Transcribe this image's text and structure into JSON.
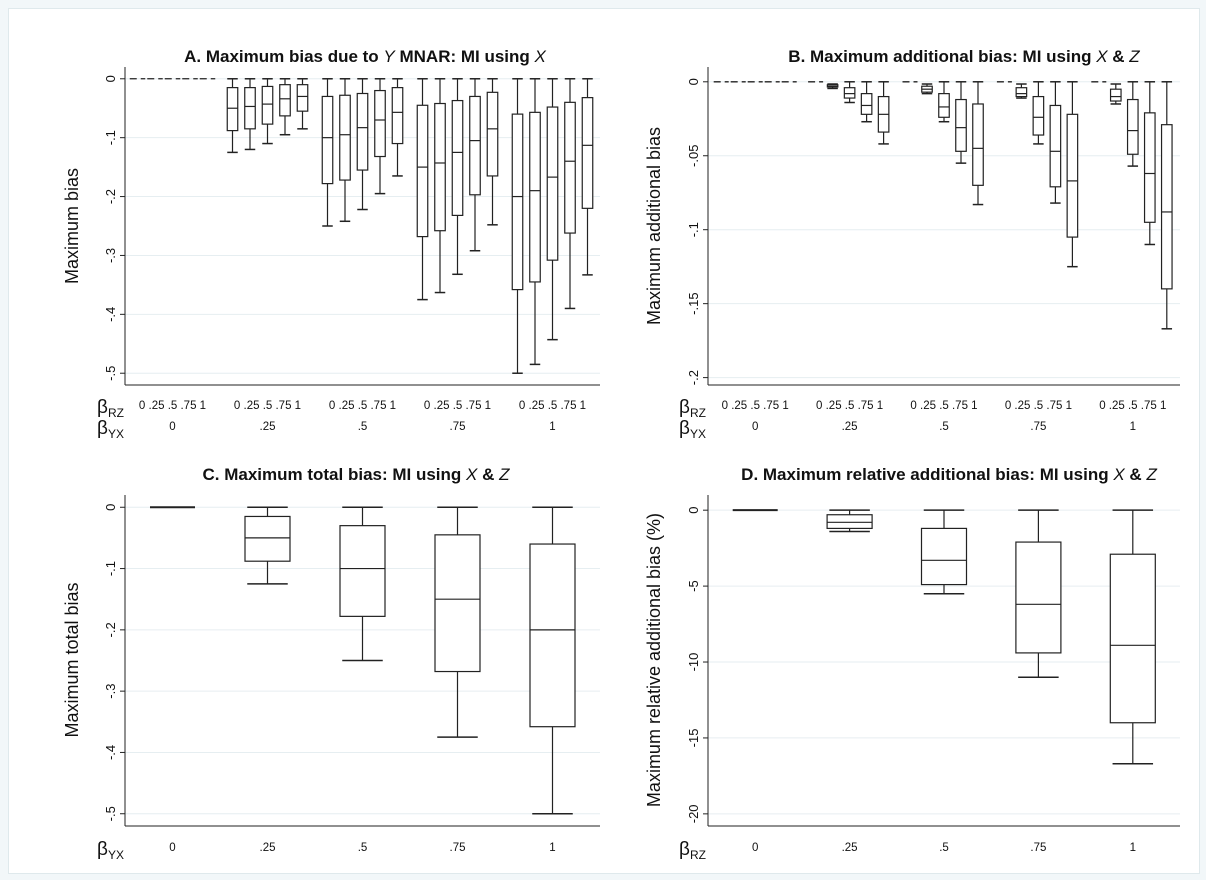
{
  "chart_data": [
    {
      "id": "A",
      "type": "boxplot",
      "title_prefix": "A. Maximum bias due to ",
      "title_parts": [
        "A. Maximum bias due to ",
        "Y",
        " MNAR: MI using ",
        "X"
      ],
      "ylabel": "Maximum bias",
      "ylim": [
        -0.52,
        0.02
      ],
      "yticks": [
        0,
        -0.1,
        -0.2,
        -0.3,
        -0.4,
        -0.5
      ],
      "ytick_labels": [
        "0",
        "-.1",
        "-.2",
        "-.3",
        "-.4",
        "-.5"
      ],
      "grid": true,
      "x_rows": [
        {
          "symbol": "β",
          "sub": "RZ",
          "labels": [
            "0 .25 .5 .75 1",
            "0 .25 .5 .75 1",
            "0 .25 .5 .75 1",
            "0 .25 .5 .75 1",
            "0 .25 .5 .75 1"
          ]
        },
        {
          "symbol": "β",
          "sub": "YX",
          "labels": [
            "0",
            ".25",
            ".5",
            ".75",
            "1"
          ]
        }
      ],
      "groups": [
        {
          "beta_yx": "0",
          "boxes": [
            {
              "min": 0,
              "q1": 0,
              "median": 0,
              "q3": 0,
              "max": 0
            },
            {
              "min": 0,
              "q1": 0,
              "median": 0,
              "q3": 0,
              "max": 0
            },
            {
              "min": 0,
              "q1": 0,
              "median": 0,
              "q3": 0,
              "max": 0
            },
            {
              "min": 0,
              "q1": 0,
              "median": 0,
              "q3": 0,
              "max": 0
            },
            {
              "min": 0,
              "q1": 0,
              "median": 0,
              "q3": 0,
              "max": 0
            }
          ]
        },
        {
          "beta_yx": ".25",
          "boxes": [
            {
              "min": -0.125,
              "q1": -0.088,
              "median": -0.05,
              "q3": -0.015,
              "max": 0
            },
            {
              "min": -0.12,
              "q1": -0.085,
              "median": -0.047,
              "q3": -0.015,
              "max": 0
            },
            {
              "min": -0.11,
              "q1": -0.077,
              "median": -0.043,
              "q3": -0.013,
              "max": 0
            },
            {
              "min": -0.095,
              "q1": -0.063,
              "median": -0.034,
              "q3": -0.01,
              "max": 0
            },
            {
              "min": -0.085,
              "q1": -0.055,
              "median": -0.03,
              "q3": -0.01,
              "max": 0
            }
          ]
        },
        {
          "beta_yx": ".5",
          "boxes": [
            {
              "min": -0.25,
              "q1": -0.178,
              "median": -0.1,
              "q3": -0.03,
              "max": 0
            },
            {
              "min": -0.242,
              "q1": -0.172,
              "median": -0.095,
              "q3": -0.028,
              "max": 0
            },
            {
              "min": -0.222,
              "q1": -0.155,
              "median": -0.083,
              "q3": -0.025,
              "max": 0
            },
            {
              "min": -0.195,
              "q1": -0.132,
              "median": -0.07,
              "q3": -0.02,
              "max": 0
            },
            {
              "min": -0.165,
              "q1": -0.11,
              "median": -0.057,
              "q3": -0.015,
              "max": 0
            }
          ]
        },
        {
          "beta_yx": ".75",
          "boxes": [
            {
              "min": -0.375,
              "q1": -0.268,
              "median": -0.15,
              "q3": -0.045,
              "max": 0
            },
            {
              "min": -0.363,
              "q1": -0.258,
              "median": -0.143,
              "q3": -0.042,
              "max": 0
            },
            {
              "min": -0.332,
              "q1": -0.232,
              "median": -0.125,
              "q3": -0.037,
              "max": 0
            },
            {
              "min": -0.292,
              "q1": -0.197,
              "median": -0.105,
              "q3": -0.03,
              "max": 0
            },
            {
              "min": -0.248,
              "q1": -0.165,
              "median": -0.085,
              "q3": -0.023,
              "max": 0
            }
          ]
        },
        {
          "beta_yx": "1",
          "boxes": [
            {
              "min": -0.5,
              "q1": -0.358,
              "median": -0.2,
              "q3": -0.06,
              "max": 0
            },
            {
              "min": -0.485,
              "q1": -0.345,
              "median": -0.19,
              "q3": -0.057,
              "max": 0
            },
            {
              "min": -0.443,
              "q1": -0.308,
              "median": -0.167,
              "q3": -0.048,
              "max": 0
            },
            {
              "min": -0.39,
              "q1": -0.262,
              "median": -0.14,
              "q3": -0.04,
              "max": 0
            },
            {
              "min": -0.333,
              "q1": -0.22,
              "median": -0.113,
              "q3": -0.032,
              "max": 0
            }
          ]
        }
      ]
    },
    {
      "id": "B",
      "type": "boxplot",
      "title_parts": [
        "B. Maximum additional bias: MI using ",
        "X",
        " & ",
        "Z"
      ],
      "ylabel": "Maximum additional bias",
      "ylim": [
        -0.205,
        0.01
      ],
      "yticks": [
        0,
        -0.05,
        -0.1,
        -0.15,
        -0.2
      ],
      "ytick_labels": [
        "0",
        "-.05",
        "-.1",
        "-.15",
        "-.2"
      ],
      "grid": true,
      "x_rows": [
        {
          "symbol": "β",
          "sub": "RZ",
          "labels": [
            "0 .25 .5 .75 1",
            "0 .25 .5 .75 1",
            "0 .25 .5 .75 1",
            "0 .25 .5 .75 1",
            "0 .25 .5 .75 1"
          ]
        },
        {
          "symbol": "β",
          "sub": "YX",
          "labels": [
            "0",
            ".25",
            ".5",
            ".75",
            "1"
          ]
        }
      ],
      "groups": [
        {
          "beta_yx": "0",
          "boxes": [
            {
              "min": 0,
              "q1": 0,
              "median": 0,
              "q3": 0,
              "max": 0
            },
            {
              "min": 0,
              "q1": 0,
              "median": 0,
              "q3": 0,
              "max": 0
            },
            {
              "min": 0,
              "q1": 0,
              "median": 0,
              "q3": 0,
              "max": 0
            },
            {
              "min": 0,
              "q1": 0,
              "median": 0,
              "q3": 0,
              "max": 0
            },
            {
              "min": 0,
              "q1": 0,
              "median": 0,
              "q3": 0,
              "max": 0
            }
          ]
        },
        {
          "beta_yx": ".25",
          "boxes": [
            {
              "min": 0,
              "q1": 0,
              "median": 0,
              "q3": 0,
              "max": 0
            },
            {
              "min": -0.0045,
              "q1": -0.0035,
              "median": -0.003,
              "q3": -0.002,
              "max": -0.0015
            },
            {
              "min": -0.014,
              "q1": -0.011,
              "median": -0.008,
              "q3": -0.004,
              "max": 0
            },
            {
              "min": -0.027,
              "q1": -0.022,
              "median": -0.016,
              "q3": -0.008,
              "max": 0
            },
            {
              "min": -0.042,
              "q1": -0.034,
              "median": -0.022,
              "q3": -0.01,
              "max": 0
            }
          ]
        },
        {
          "beta_yx": ".5",
          "boxes": [
            {
              "min": 0,
              "q1": 0,
              "median": 0,
              "q3": 0,
              "max": 0
            },
            {
              "min": -0.008,
              "q1": -0.007,
              "median": -0.005,
              "q3": -0.003,
              "max": -0.0015
            },
            {
              "min": -0.027,
              "q1": -0.024,
              "median": -0.017,
              "q3": -0.008,
              "max": 0
            },
            {
              "min": -0.055,
              "q1": -0.047,
              "median": -0.031,
              "q3": -0.012,
              "max": 0
            },
            {
              "min": -0.083,
              "q1": -0.07,
              "median": -0.045,
              "q3": -0.015,
              "max": 0
            }
          ]
        },
        {
          "beta_yx": ".75",
          "boxes": [
            {
              "min": 0,
              "q1": 0,
              "median": 0,
              "q3": 0,
              "max": 0
            },
            {
              "min": -0.011,
              "q1": -0.01,
              "median": -0.008,
              "q3": -0.004,
              "max": -0.0015
            },
            {
              "min": -0.042,
              "q1": -0.036,
              "median": -0.024,
              "q3": -0.01,
              "max": 0
            },
            {
              "min": -0.082,
              "q1": -0.071,
              "median": -0.047,
              "q3": -0.016,
              "max": 0
            },
            {
              "min": -0.125,
              "q1": -0.105,
              "median": -0.067,
              "q3": -0.022,
              "max": 0
            }
          ]
        },
        {
          "beta_yx": "1",
          "boxes": [
            {
              "min": 0,
              "q1": 0,
              "median": 0,
              "q3": 0,
              "max": 0
            },
            {
              "min": -0.015,
              "q1": -0.013,
              "median": -0.01,
              "q3": -0.005,
              "max": -0.0015
            },
            {
              "min": -0.057,
              "q1": -0.049,
              "median": -0.033,
              "q3": -0.012,
              "max": 0
            },
            {
              "min": -0.11,
              "q1": -0.095,
              "median": -0.062,
              "q3": -0.021,
              "max": 0
            },
            {
              "min": -0.167,
              "q1": -0.14,
              "median": -0.088,
              "q3": -0.029,
              "max": 0
            }
          ]
        }
      ]
    },
    {
      "id": "C",
      "type": "boxplot",
      "title_parts": [
        "C. Maximum total bias: MI using ",
        "X",
        " & ",
        "Z"
      ],
      "ylabel": "Maximum total bias",
      "ylim": [
        -0.52,
        0.02
      ],
      "yticks": [
        0,
        -0.1,
        -0.2,
        -0.3,
        -0.4,
        -0.5
      ],
      "ytick_labels": [
        "0",
        "-.1",
        "-.2",
        "-.3",
        "-.4",
        "-.5"
      ],
      "grid": true,
      "x_rows": [
        {
          "symbol": "β",
          "sub": "YX",
          "labels": [
            "0",
            ".25",
            ".5",
            ".75",
            "1"
          ]
        }
      ],
      "groups": [
        {
          "beta_yx": "0",
          "boxes": [
            {
              "min": 0,
              "q1": 0,
              "median": 0,
              "q3": 0,
              "max": 0
            }
          ]
        },
        {
          "beta_yx": ".25",
          "boxes": [
            {
              "min": -0.125,
              "q1": -0.088,
              "median": -0.05,
              "q3": -0.015,
              "max": 0
            }
          ]
        },
        {
          "beta_yx": ".5",
          "boxes": [
            {
              "min": -0.25,
              "q1": -0.178,
              "median": -0.1,
              "q3": -0.03,
              "max": 0
            }
          ]
        },
        {
          "beta_yx": ".75",
          "boxes": [
            {
              "min": -0.375,
              "q1": -0.268,
              "median": -0.15,
              "q3": -0.045,
              "max": 0
            }
          ]
        },
        {
          "beta_yx": "1",
          "boxes": [
            {
              "min": -0.5,
              "q1": -0.358,
              "median": -0.2,
              "q3": -0.06,
              "max": 0
            }
          ]
        }
      ]
    },
    {
      "id": "D",
      "type": "boxplot",
      "title_parts": [
        "D. Maximum relative additional bias: MI using ",
        "X",
        " & ",
        "Z"
      ],
      "ylabel": "Maximum relative additional bias (%)",
      "ylim": [
        -20.8,
        1
      ],
      "yticks": [
        0,
        -5,
        -10,
        -15,
        -20
      ],
      "ytick_labels": [
        "0",
        "-5",
        "-10",
        "-15",
        "-20"
      ],
      "grid": true,
      "x_rows": [
        {
          "symbol": "β",
          "sub": "RZ",
          "labels": [
            "0",
            ".25",
            ".5",
            ".75",
            "1"
          ]
        }
      ],
      "groups": [
        {
          "beta_rz": "0",
          "boxes": [
            {
              "min": 0,
              "q1": 0,
              "median": 0,
              "q3": 0,
              "max": 0
            }
          ]
        },
        {
          "beta_rz": ".25",
          "boxes": [
            {
              "min": -1.4,
              "q1": -1.2,
              "median": -0.8,
              "q3": -0.3,
              "max": 0
            }
          ]
        },
        {
          "beta_rz": ".5",
          "boxes": [
            {
              "min": -5.5,
              "q1": -4.9,
              "median": -3.3,
              "q3": -1.2,
              "max": 0
            }
          ]
        },
        {
          "beta_rz": ".75",
          "boxes": [
            {
              "min": -11,
              "q1": -9.4,
              "median": -6.2,
              "q3": -2.1,
              "max": 0
            }
          ]
        },
        {
          "beta_rz": "1",
          "boxes": [
            {
              "min": -16.7,
              "q1": -14,
              "median": -8.9,
              "q3": -2.9,
              "max": 0
            }
          ]
        }
      ]
    }
  ]
}
